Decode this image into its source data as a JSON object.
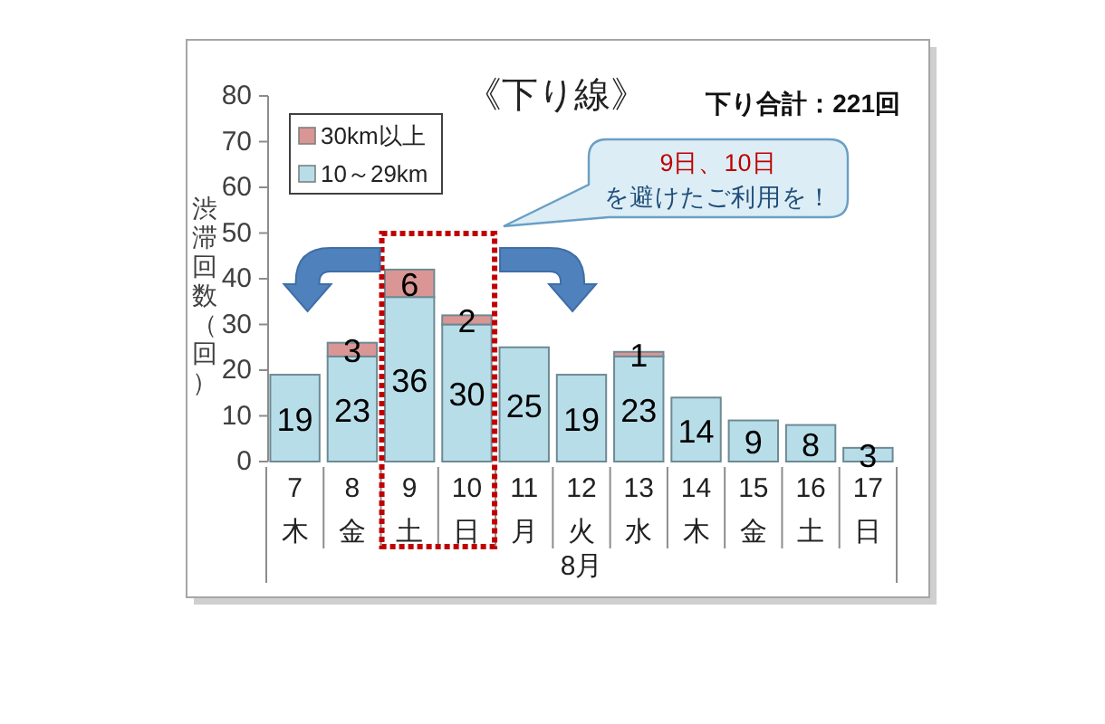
{
  "chart_data": {
    "type": "bar",
    "title": "《下り線》",
    "xlabel": "8月",
    "ylabel": "渋滞回数（回）",
    "categories": [
      "7\n木",
      "8\n金",
      "9\n土",
      "10\n日",
      "11\n月",
      "12\n火",
      "13\n水",
      "14\n木",
      "15\n金",
      "16\n土",
      "17\n日"
    ],
    "series": [
      {
        "name": "10～29km",
        "color": "#b7dde8",
        "values": [
          19,
          23,
          36,
          30,
          25,
          19,
          23,
          14,
          9,
          8,
          3
        ]
      },
      {
        "name": "30km以上",
        "color": "#d99694",
        "values": [
          null,
          3,
          6,
          2,
          null,
          null,
          1,
          null,
          null,
          null,
          null
        ]
      }
    ],
    "stacked": true,
    "data_labels": true,
    "legend": "top left",
    "ylim": [
      0,
      80
    ],
    "yticks": [
      0,
      10,
      20,
      30,
      40,
      50,
      60,
      70,
      80
    ],
    "annotations": [
      "下り合計：221回",
      "9日、10日",
      "を避けたご利用を！"
    ]
  }
}
